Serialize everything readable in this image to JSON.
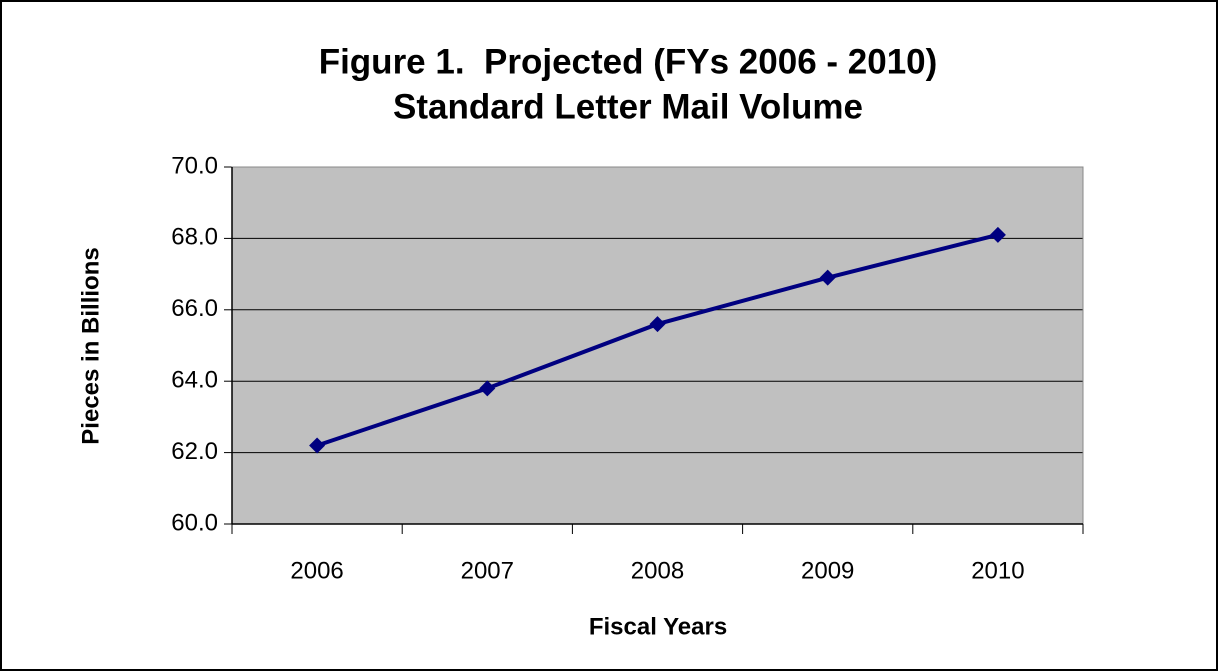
{
  "chart_data": {
    "type": "line",
    "title": [
      "Figure 1.  Projected (FYs 2006 - 2010)",
      "Standard Letter Mail Volume"
    ],
    "x_label": "Fiscal Years",
    "y_label": "Pieces in Billions",
    "categories": [
      "2006",
      "2007",
      "2008",
      "2009",
      "2010"
    ],
    "series": [
      {
        "name": "Standard Letter Mail Volume",
        "color": "#000080",
        "values": [
          62.2,
          63.8,
          65.6,
          66.9,
          68.1
        ]
      }
    ],
    "ylim": [
      60,
      70
    ],
    "yticks": [
      {
        "value": 60,
        "label": "60.0"
      },
      {
        "value": 62,
        "label": "62.0"
      },
      {
        "value": 64,
        "label": "64.0"
      },
      {
        "value": 66,
        "label": "66.0"
      },
      {
        "value": 68,
        "label": "68.0"
      },
      {
        "value": 70,
        "label": "70.0"
      }
    ],
    "grid": true
  }
}
